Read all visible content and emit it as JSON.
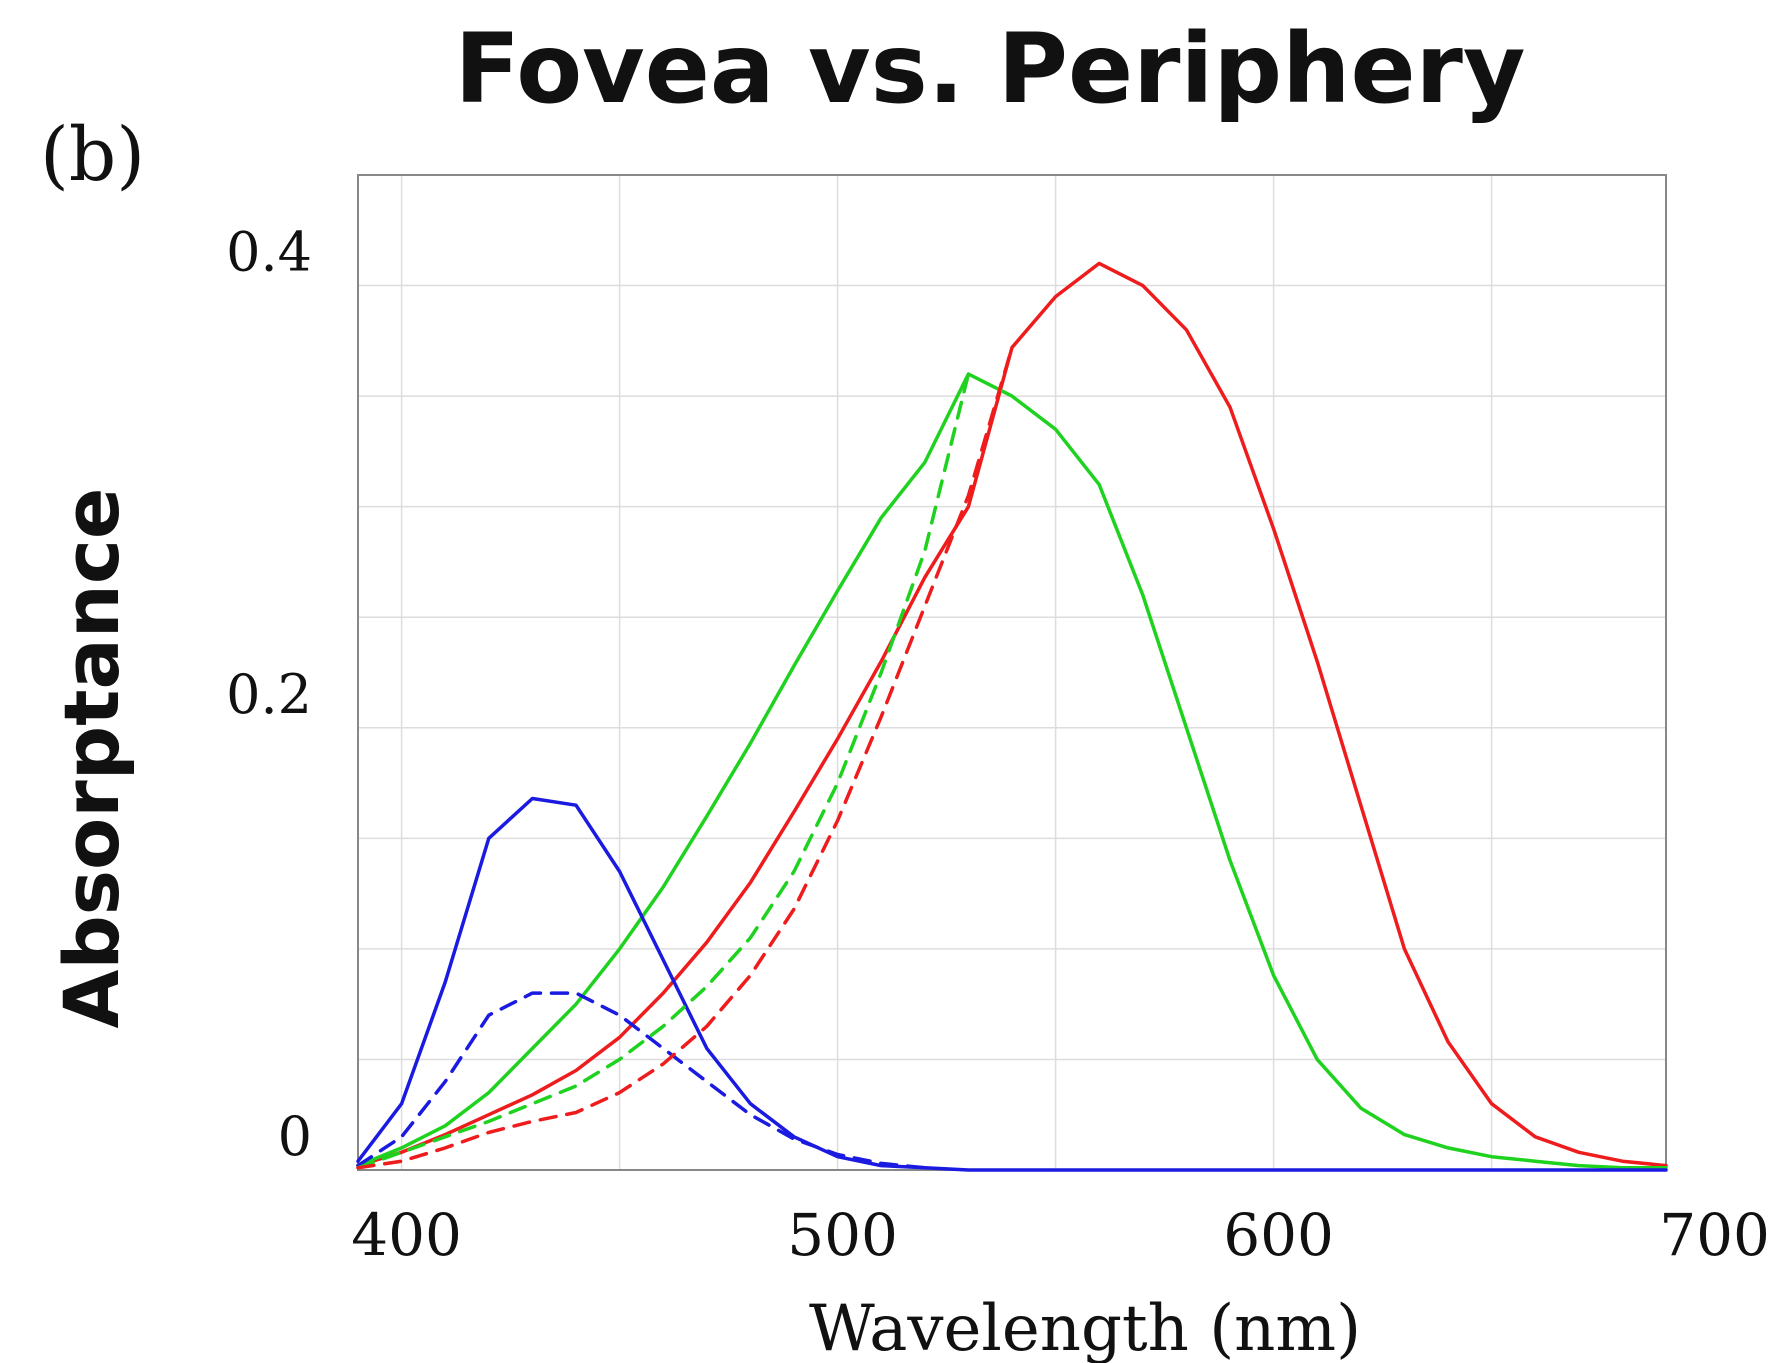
{
  "panel_label": "(b)",
  "chart_data": {
    "type": "line",
    "title": "Fovea vs. Periphery",
    "xlabel": "Wavelength (nm)",
    "ylabel": "Absorptance",
    "xlim": [
      390,
      690
    ],
    "ylim": [
      0,
      0.45
    ],
    "grid": true,
    "x_ticks": [
      400,
      500,
      600,
      700
    ],
    "x_tick_labels": [
      "400",
      "500",
      "600",
      "700"
    ],
    "y_ticks": [
      0,
      0.2,
      0.4
    ],
    "y_tick_labels": [
      "0",
      "0.2",
      "0.4"
    ],
    "series": [
      {
        "color": "#ee1c1c",
        "style": "solid",
        "points": [
          [
            390,
            0.002
          ],
          [
            400,
            0.008
          ],
          [
            410,
            0.016
          ],
          [
            420,
            0.025
          ],
          [
            430,
            0.034
          ],
          [
            440,
            0.045
          ],
          [
            450,
            0.06
          ],
          [
            460,
            0.08
          ],
          [
            470,
            0.103
          ],
          [
            480,
            0.13
          ],
          [
            490,
            0.162
          ],
          [
            500,
            0.195
          ],
          [
            510,
            0.23
          ],
          [
            520,
            0.268
          ],
          [
            530,
            0.3
          ],
          [
            540,
            0.372
          ],
          [
            550,
            0.395
          ],
          [
            560,
            0.41
          ],
          [
            570,
            0.4
          ],
          [
            580,
            0.38
          ],
          [
            590,
            0.345
          ],
          [
            600,
            0.29
          ],
          [
            610,
            0.23
          ],
          [
            620,
            0.165
          ],
          [
            630,
            0.1
          ],
          [
            640,
            0.058
          ],
          [
            650,
            0.03
          ],
          [
            660,
            0.015
          ],
          [
            670,
            0.008
          ],
          [
            680,
            0.004
          ],
          [
            690,
            0.002
          ]
        ]
      },
      {
        "color": "#1fd21f",
        "style": "solid",
        "points": [
          [
            390,
            0.002
          ],
          [
            400,
            0.01
          ],
          [
            410,
            0.02
          ],
          [
            420,
            0.035
          ],
          [
            430,
            0.055
          ],
          [
            440,
            0.075
          ],
          [
            450,
            0.1
          ],
          [
            460,
            0.128
          ],
          [
            470,
            0.16
          ],
          [
            480,
            0.193
          ],
          [
            490,
            0.228
          ],
          [
            500,
            0.262
          ],
          [
            510,
            0.295
          ],
          [
            520,
            0.32
          ],
          [
            530,
            0.36
          ],
          [
            540,
            0.35
          ],
          [
            550,
            0.335
          ],
          [
            560,
            0.31
          ],
          [
            570,
            0.26
          ],
          [
            580,
            0.2
          ],
          [
            590,
            0.14
          ],
          [
            600,
            0.088
          ],
          [
            610,
            0.05
          ],
          [
            620,
            0.028
          ],
          [
            630,
            0.016
          ],
          [
            640,
            0.01
          ],
          [
            650,
            0.006
          ],
          [
            660,
            0.004
          ],
          [
            670,
            0.002
          ],
          [
            680,
            0.001
          ],
          [
            690,
            0.001
          ]
        ]
      },
      {
        "color": "#1a1ae0",
        "style": "solid",
        "points": [
          [
            390,
            0.004
          ],
          [
            400,
            0.03
          ],
          [
            410,
            0.085
          ],
          [
            420,
            0.15
          ],
          [
            430,
            0.168
          ],
          [
            440,
            0.165
          ],
          [
            450,
            0.135
          ],
          [
            460,
            0.095
          ],
          [
            470,
            0.055
          ],
          [
            480,
            0.03
          ],
          [
            490,
            0.015
          ],
          [
            500,
            0.006
          ],
          [
            510,
            0.002
          ],
          [
            520,
            0.001
          ],
          [
            530,
            0.0
          ],
          [
            540,
            0.0
          ],
          [
            560,
            0.0
          ],
          [
            600,
            0.0
          ],
          [
            650,
            0.0
          ],
          [
            690,
            0.0
          ]
        ]
      },
      {
        "color": "#1a1ae0",
        "style": "dashed",
        "points": [
          [
            390,
            0.002
          ],
          [
            400,
            0.015
          ],
          [
            410,
            0.04
          ],
          [
            420,
            0.07
          ],
          [
            430,
            0.08
          ],
          [
            440,
            0.08
          ],
          [
            450,
            0.07
          ],
          [
            460,
            0.055
          ],
          [
            470,
            0.04
          ],
          [
            480,
            0.025
          ],
          [
            490,
            0.014
          ],
          [
            500,
            0.007
          ],
          [
            510,
            0.003
          ],
          [
            520,
            0.001
          ]
        ]
      },
      {
        "color": "#1fd21f",
        "style": "dashed",
        "points": [
          [
            390,
            0.001
          ],
          [
            400,
            0.008
          ],
          [
            410,
            0.015
          ],
          [
            420,
            0.022
          ],
          [
            430,
            0.03
          ],
          [
            440,
            0.038
          ],
          [
            450,
            0.05
          ],
          [
            460,
            0.065
          ],
          [
            470,
            0.083
          ],
          [
            480,
            0.105
          ],
          [
            490,
            0.135
          ],
          [
            500,
            0.175
          ],
          [
            510,
            0.225
          ],
          [
            520,
            0.28
          ],
          [
            530,
            0.36
          ]
        ]
      },
      {
        "color": "#ee1c1c",
        "style": "dashed",
        "points": [
          [
            390,
            0.001
          ],
          [
            400,
            0.004
          ],
          [
            410,
            0.01
          ],
          [
            420,
            0.017
          ],
          [
            430,
            0.022
          ],
          [
            440,
            0.026
          ],
          [
            450,
            0.035
          ],
          [
            460,
            0.048
          ],
          [
            470,
            0.065
          ],
          [
            480,
            0.088
          ],
          [
            490,
            0.118
          ],
          [
            500,
            0.158
          ],
          [
            510,
            0.205
          ],
          [
            520,
            0.255
          ],
          [
            530,
            0.305
          ],
          [
            540,
            0.372
          ]
        ]
      }
    ]
  }
}
